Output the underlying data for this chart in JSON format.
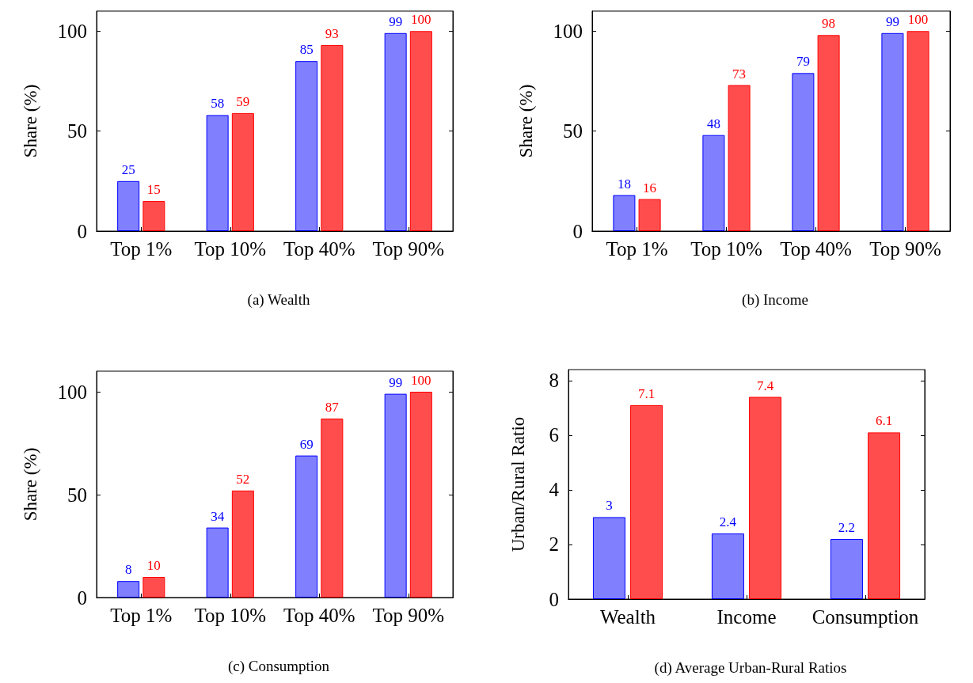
{
  "chart_data": [
    {
      "type": "bar",
      "title": "(a) Wealth",
      "ylabel": "Share (%)",
      "categories": [
        "Top 1%",
        "Top 10%",
        "Top 40%",
        "Top 90%"
      ],
      "ylim": [
        0,
        110
      ],
      "yticks": [
        0,
        50,
        100
      ],
      "data_labels": true,
      "series": [
        {
          "color": "#8080ff",
          "values": [
            25,
            58,
            85,
            99
          ]
        },
        {
          "color": "#ff4d4d",
          "values": [
            15,
            59,
            93,
            100
          ]
        }
      ]
    },
    {
      "type": "bar",
      "title": "(b) Income",
      "ylabel": "Share (%)",
      "categories": [
        "Top 1%",
        "Top 10%",
        "Top 40%",
        "Top 90%"
      ],
      "ylim": [
        0,
        110
      ],
      "yticks": [
        0,
        50,
        100
      ],
      "data_labels": true,
      "series": [
        {
          "color": "#8080ff",
          "values": [
            18,
            48,
            79,
            99
          ]
        },
        {
          "color": "#ff4d4d",
          "values": [
            16,
            73,
            98,
            100
          ]
        }
      ]
    },
    {
      "type": "bar",
      "title": "(c) Consumption",
      "ylabel": "Share (%)",
      "categories": [
        "Top 1%",
        "Top 10%",
        "Top 40%",
        "Top 90%"
      ],
      "ylim": [
        0,
        110
      ],
      "yticks": [
        0,
        50,
        100
      ],
      "data_labels": true,
      "series": [
        {
          "color": "#8080ff",
          "values": [
            8,
            34,
            69,
            99
          ]
        },
        {
          "color": "#ff4d4d",
          "values": [
            10,
            52,
            87,
            100
          ]
        }
      ]
    },
    {
      "type": "bar",
      "title": "(d) Average Urban-Rural Ratios",
      "ylabel": "Urban/Rural Ratio",
      "categories": [
        "Wealth",
        "Income",
        "Consumption"
      ],
      "ylim": [
        0,
        8.4
      ],
      "yticks": [
        0,
        2,
        4,
        6,
        8
      ],
      "data_labels": true,
      "series": [
        {
          "color": "#8080ff",
          "values": [
            3,
            2.4,
            2.2
          ]
        },
        {
          "color": "#ff4d4d",
          "values": [
            7.1,
            7.4,
            6.1
          ]
        }
      ]
    }
  ]
}
